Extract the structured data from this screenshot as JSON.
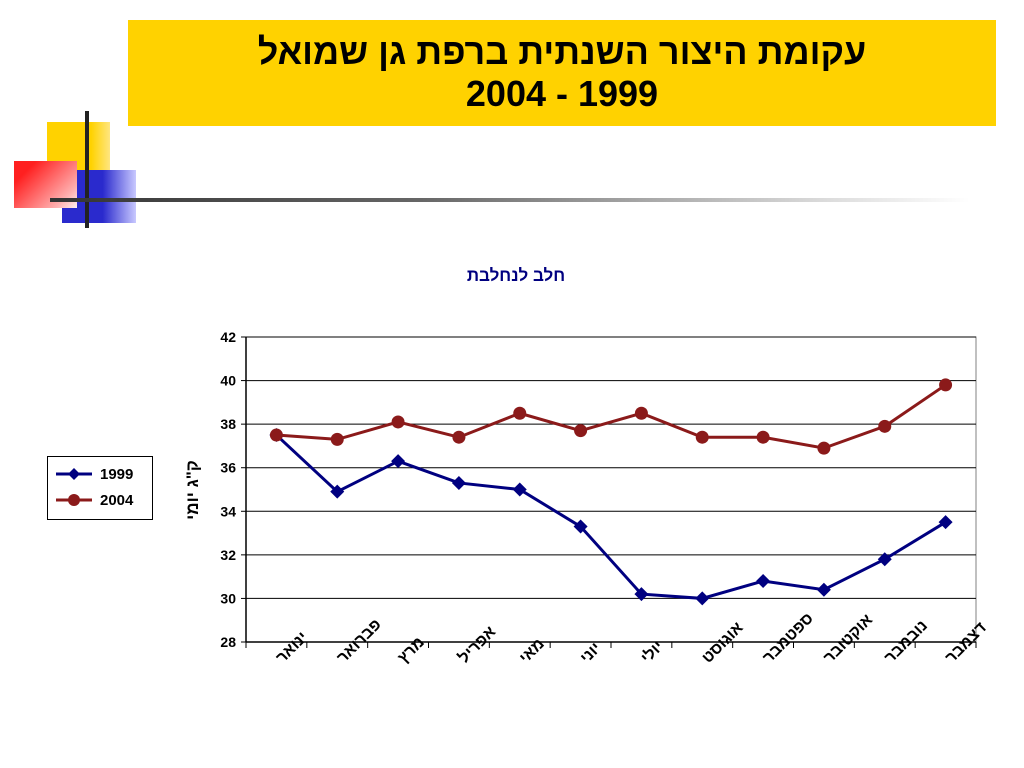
{
  "header": {
    "title_line1": "עקומת היצור השנתית ברפת גן שמואל",
    "title_line2": "2004 - 1999"
  },
  "colors": {
    "title_band": "#FFD200",
    "series_1999": "#000080",
    "series_2004": "#8B1A1A",
    "chart_title": "#000080"
  },
  "chart_data": {
    "type": "line",
    "title": "חלב לנחלבת",
    "xlabel": "",
    "ylabel": "ק\"ג יומי",
    "ylim": [
      28,
      42
    ],
    "yticks": [
      28,
      30,
      32,
      34,
      36,
      38,
      40,
      42
    ],
    "grid": true,
    "legend_position": "left",
    "categories": [
      "ינואר",
      "פברואר",
      "מרץ",
      "אפריל",
      "מאי",
      "יוני",
      "יולי",
      "אוגוסט",
      "ספטמבר",
      "אוקטובר",
      "נובמבר",
      "דצמבר"
    ],
    "series": [
      {
        "name": "1999",
        "marker": "diamond",
        "color": "#000080",
        "values": [
          37.5,
          34.9,
          36.3,
          35.3,
          35.0,
          33.3,
          30.2,
          30.0,
          30.8,
          30.4,
          31.8,
          33.5
        ]
      },
      {
        "name": "2004",
        "marker": "circle",
        "color": "#8B1A1A",
        "values": [
          37.5,
          37.3,
          38.1,
          37.4,
          38.5,
          37.7,
          38.5,
          37.4,
          37.4,
          36.9,
          37.9,
          39.8
        ]
      }
    ]
  }
}
